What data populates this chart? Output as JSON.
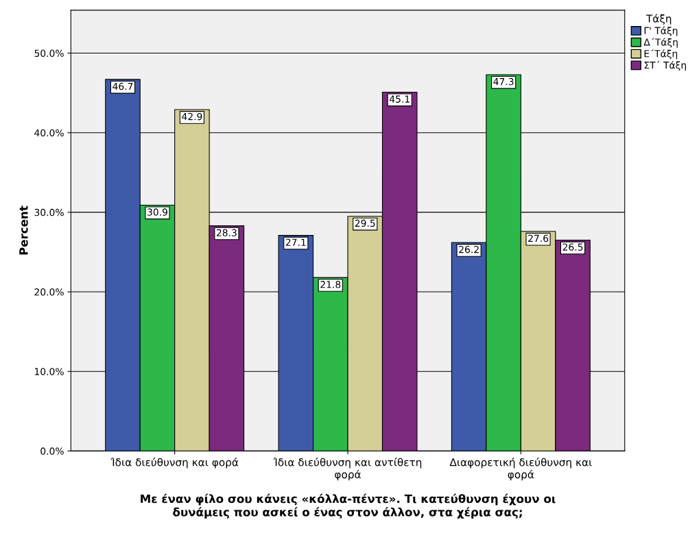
{
  "chart_data": {
    "type": "bar",
    "xlabel": "Με έναν φίλο σου κάνεις «κόλλα-πέντε». Τι κατεύθυνση έχουν οι\nδυνάμεις που ασκεί ο ένας στον άλλον, στα χέρια σας;",
    "ylabel": "Percent",
    "legend_title": "Τάξη",
    "categories": [
      "Ίδια διεύθυνση και φορά",
      "Ίδια διεύθυνση και αντίθετη\nφορά",
      "Διαφορετική διεύθυνση και\nφορά"
    ],
    "series": [
      {
        "name": "Γ' Τάξη",
        "color": "#3f5aa8",
        "values": [
          46.7,
          27.1,
          26.2
        ]
      },
      {
        "name": "Δ΄Τάξη",
        "color": "#2db84a",
        "values": [
          30.9,
          21.8,
          47.3
        ]
      },
      {
        "name": "Ε΄Τάξη",
        "color": "#d4cf97",
        "values": [
          42.9,
          29.5,
          27.6
        ]
      },
      {
        "name": "ΣΤ΄ Τάξη",
        "color": "#7b2a7d",
        "values": [
          28.3,
          45.1,
          26.5
        ]
      }
    ],
    "ylim": [
      0,
      55.4
    ],
    "yticks": [
      {
        "value": 0,
        "label": "0.0%"
      },
      {
        "value": 10,
        "label": "10.0%"
      },
      {
        "value": 20,
        "label": "20.0%"
      },
      {
        "value": 30,
        "label": "30.0%"
      },
      {
        "value": 40,
        "label": "40.0%"
      },
      {
        "value": 50,
        "label": "50.0%"
      }
    ],
    "grid": "y",
    "legend": "top right",
    "data_labels": true
  }
}
